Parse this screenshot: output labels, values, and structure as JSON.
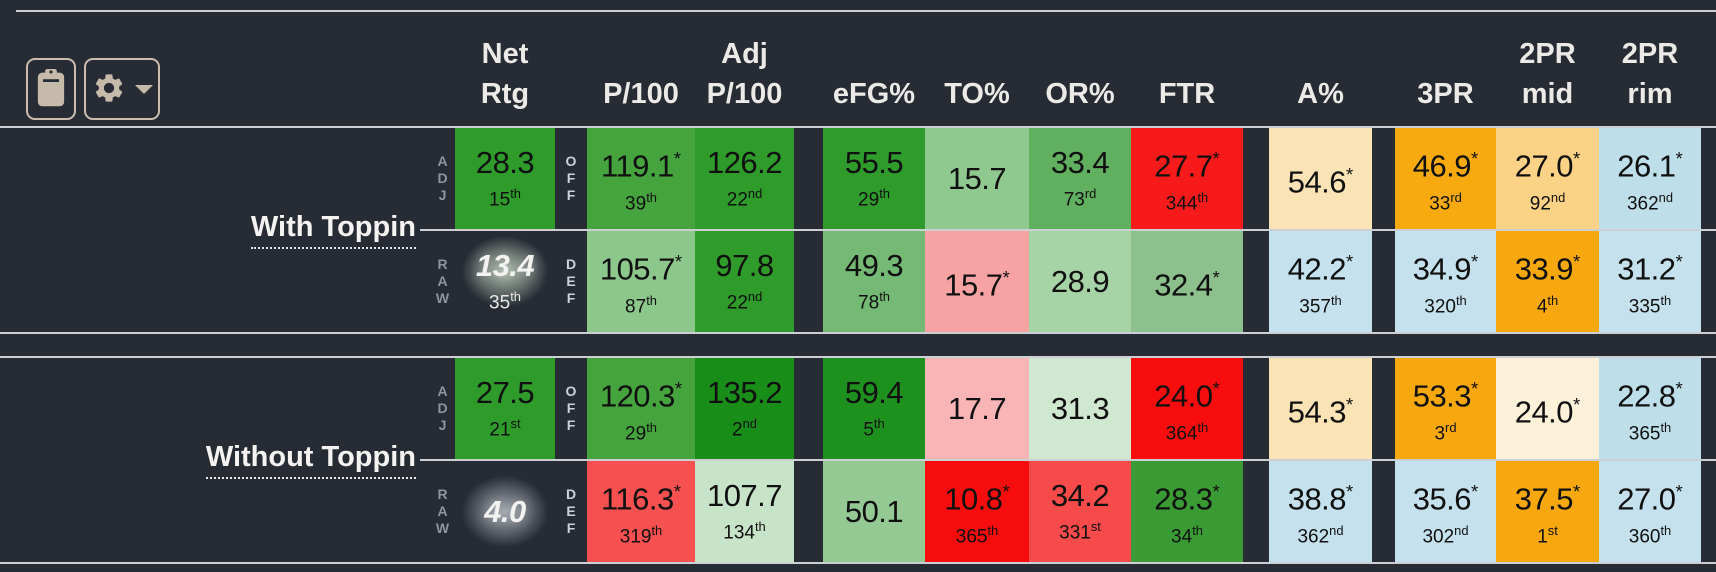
{
  "toolbar": {
    "buttons": [
      {
        "name": "copy-table-button",
        "icon": "clipboard-icon"
      },
      {
        "name": "settings-button",
        "icon": "gear-icon",
        "caret": "chevron-down-icon"
      }
    ]
  },
  "colors": {
    "background": "#262b34",
    "divider_line": "#ccd0d5",
    "button_accent": "#c6bbab",
    "header_text": "#eceae7"
  },
  "columns": [
    {
      "id": "net-rtg",
      "line1": "Net",
      "line2": "Rtg"
    },
    {
      "id": "p100",
      "line1": "",
      "line2": "P/100"
    },
    {
      "id": "adj-p100",
      "line1": "Adj",
      "line2": "P/100"
    },
    {
      "id": "efg",
      "line1": "",
      "line2": "eFG%"
    },
    {
      "id": "to",
      "line1": "",
      "line2": "TO%"
    },
    {
      "id": "or",
      "line1": "",
      "line2": "OR%"
    },
    {
      "id": "ftr",
      "line1": "",
      "line2": "FTR"
    },
    {
      "id": "a",
      "line1": "",
      "line2": "A%"
    },
    {
      "id": "3pr",
      "line1": "",
      "line2": "3PR"
    },
    {
      "id": "2pr-mid",
      "line1": "2PR",
      "line2": "mid"
    },
    {
      "id": "2pr-rim",
      "line1": "2PR",
      "line2": "rim"
    }
  ],
  "groups": [
    {
      "label": "With Toppin",
      "rows": [
        {
          "row_label": "ADJ",
          "split_label": "OFF",
          "cells": [
            {
              "value": "28.3",
              "star": false,
              "rank": "15",
              "ord": "th",
              "bg": "#2e9b2b"
            },
            {
              "value": "119.1",
              "star": true,
              "rank": "39",
              "ord": "th",
              "bg": "#46a43e"
            },
            {
              "value": "126.2",
              "star": false,
              "rank": "22",
              "ord": "nd",
              "bg": "#2e9b2b"
            },
            {
              "value": "55.5",
              "star": false,
              "rank": "29",
              "ord": "th",
              "bg": "#2e9b2b"
            },
            {
              "value": "15.7",
              "star": false,
              "rank": "",
              "ord": "",
              "bg": "#8fc98f"
            },
            {
              "value": "33.4",
              "star": false,
              "rank": "73",
              "ord": "rd",
              "bg": "#60b060"
            },
            {
              "value": "27.7",
              "star": true,
              "rank": "344",
              "ord": "th",
              "bg": "#f71a1a"
            },
            {
              "value": "54.6",
              "star": true,
              "rank": "",
              "ord": "",
              "bg": "#fae3b4"
            },
            {
              "value": "46.9",
              "star": true,
              "rank": "33",
              "ord": "rd",
              "bg": "#f7aa10"
            },
            {
              "value": "27.0",
              "star": true,
              "rank": "92",
              "ord": "nd",
              "bg": "#fcd386"
            },
            {
              "value": "26.1",
              "star": true,
              "rank": "362",
              "ord": "nd",
              "bg": "#bedfea"
            }
          ]
        },
        {
          "row_label": "RAW",
          "split_label": "DEF",
          "cells": [
            {
              "value": "13.4",
              "star": false,
              "rank": "35",
              "ord": "th",
              "special": "glow",
              "glow": "#b9c9b6"
            },
            {
              "value": "105.7",
              "star": true,
              "rank": "87",
              "ord": "th",
              "bg": "#8cc88c"
            },
            {
              "value": "97.8",
              "star": false,
              "rank": "22",
              "ord": "nd",
              "bg": "#2e9b2b"
            },
            {
              "value": "49.3",
              "star": false,
              "rank": "78",
              "ord": "th",
              "bg": "#74ba74"
            },
            {
              "value": "15.7",
              "star": true,
              "rank": "",
              "ord": "",
              "bg": "#f7a3a3"
            },
            {
              "value": "28.9",
              "star": false,
              "rank": "",
              "ord": "",
              "bg": "#a6d4a6"
            },
            {
              "value": "32.4",
              "star": true,
              "rank": "",
              "ord": "",
              "bg": "#8cc08c"
            },
            {
              "value": "42.2",
              "star": true,
              "rank": "357",
              "ord": "th",
              "bg": "#c4e1ed"
            },
            {
              "value": "34.9",
              "star": true,
              "rank": "320",
              "ord": "th",
              "bg": "#c4e1ed"
            },
            {
              "value": "33.9",
              "star": true,
              "rank": "4",
              "ord": "th",
              "bg": "#f7a80e"
            },
            {
              "value": "31.2",
              "star": true,
              "rank": "335",
              "ord": "th",
              "bg": "#c4e1ed"
            }
          ]
        }
      ]
    },
    {
      "label": "Without Toppin",
      "rows": [
        {
          "row_label": "ADJ",
          "split_label": "OFF",
          "cells": [
            {
              "value": "27.5",
              "star": false,
              "rank": "21",
              "ord": "st",
              "bg": "#2e9b2b"
            },
            {
              "value": "120.3",
              "star": true,
              "rank": "29",
              "ord": "th",
              "bg": "#46a43e"
            },
            {
              "value": "135.2",
              "star": false,
              "rank": "2",
              "ord": "nd",
              "bg": "#188d18"
            },
            {
              "value": "59.4",
              "star": false,
              "rank": "5",
              "ord": "th",
              "bg": "#1e901e"
            },
            {
              "value": "17.7",
              "star": false,
              "rank": "",
              "ord": "",
              "bg": "#f9b5b5"
            },
            {
              "value": "31.3",
              "star": false,
              "rank": "",
              "ord": "",
              "bg": "#cfe8cf"
            },
            {
              "value": "24.0",
              "star": true,
              "rank": "364",
              "ord": "th",
              "bg": "#f70d0d"
            },
            {
              "value": "54.3",
              "star": true,
              "rank": "",
              "ord": "",
              "bg": "#fae3b4"
            },
            {
              "value": "53.3",
              "star": true,
              "rank": "3",
              "ord": "rd",
              "bg": "#f7a80e"
            },
            {
              "value": "24.0",
              "star": true,
              "rank": "",
              "ord": "",
              "bg": "#fdf1da"
            },
            {
              "value": "22.8",
              "star": true,
              "rank": "365",
              "ord": "th",
              "bg": "#bedfea"
            }
          ]
        },
        {
          "row_label": "RAW",
          "split_label": "DEF",
          "cells": [
            {
              "value": "4.0",
              "star": false,
              "rank": "",
              "ord": "",
              "special": "glow",
              "glow": "#aab0b8"
            },
            {
              "value": "116.3",
              "star": true,
              "rank": "319",
              "ord": "th",
              "bg": "#f75050"
            },
            {
              "value": "107.7",
              "star": false,
              "rank": "134",
              "ord": "th",
              "bg": "#c8e4c8"
            },
            {
              "value": "50.1",
              "star": false,
              "rank": "",
              "ord": "",
              "bg": "#94c994"
            },
            {
              "value": "10.8",
              "star": true,
              "rank": "365",
              "ord": "th",
              "bg": "#f70d0d"
            },
            {
              "value": "34.2",
              "star": false,
              "rank": "331",
              "ord": "st",
              "bg": "#f74b4b"
            },
            {
              "value": "28.3",
              "star": true,
              "rank": "34",
              "ord": "th",
              "bg": "#3a9a33"
            },
            {
              "value": "38.8",
              "star": true,
              "rank": "362",
              "ord": "nd",
              "bg": "#c4e1ed"
            },
            {
              "value": "35.6",
              "star": true,
              "rank": "302",
              "ord": "nd",
              "bg": "#c4e1ed"
            },
            {
              "value": "37.5",
              "star": true,
              "rank": "1",
              "ord": "st",
              "bg": "#f7a80e"
            },
            {
              "value": "27.0",
              "star": true,
              "rank": "360",
              "ord": "th",
              "bg": "#c4e1ed"
            }
          ]
        }
      ]
    }
  ]
}
